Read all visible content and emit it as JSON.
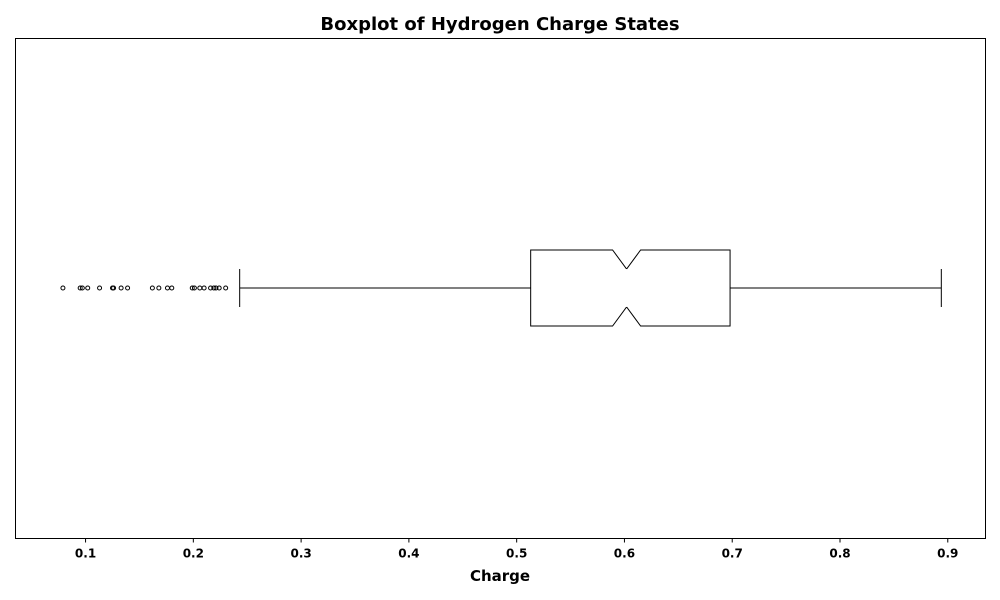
{
  "chart_data": {
    "type": "boxplot",
    "orientation": "horizontal",
    "notched": true,
    "title": "Boxplot of Hydrogen Charge States",
    "xlabel": "Charge",
    "ylabel": "",
    "xlim": [
      0.035,
      0.935
    ],
    "xticks": [
      0.1,
      0.2,
      0.3,
      0.4,
      0.5,
      0.6,
      0.7,
      0.8,
      0.9
    ],
    "xtick_labels": [
      "0.1",
      "0.2",
      "0.3",
      "0.4",
      "0.5",
      "0.6",
      "0.7",
      "0.8",
      "0.9"
    ],
    "grid": false,
    "box": {
      "whisker_low": 0.243,
      "q1": 0.513,
      "median": 0.602,
      "q3": 0.698,
      "whisker_high": 0.894,
      "notch_low": 0.589,
      "notch_high": 0.615
    },
    "outliers": [
      0.079,
      0.095,
      0.097,
      0.102,
      0.113,
      0.125,
      0.126,
      0.133,
      0.139,
      0.162,
      0.168,
      0.176,
      0.18,
      0.199,
      0.201,
      0.206,
      0.21,
      0.216,
      0.219,
      0.221,
      0.224,
      0.23
    ],
    "colors": {
      "stroke": "#000000",
      "fill": "#ffffff"
    }
  }
}
